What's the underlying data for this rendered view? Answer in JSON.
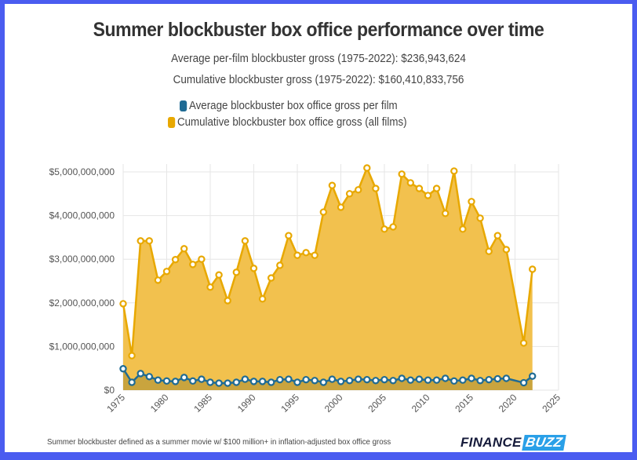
{
  "header": {
    "title": "Summer blockbuster box office performance over time",
    "subtitle_avg": "Average per-film blockbuster gross (1975-2022): $236,943,624",
    "subtitle_cum": "Cumulative blockbuster gross (1975-2022): $160,410,833,756"
  },
  "legend": {
    "items": [
      {
        "label": "Average blockbuster box office gross per film",
        "color": "#1f6b94"
      },
      {
        "label": "Cumulative blockbuster box office gross (all films)",
        "color": "#e8a800"
      }
    ]
  },
  "footer": {
    "note": "Summer blockbuster defined as a summer movie w/ $100 million+ in inflation-adjusted box office gross",
    "logo_part1": "FINANCE",
    "logo_part2": "BUZZ"
  },
  "colors": {
    "border": "#4a5cf0",
    "cumulative_line": "#e8a800",
    "cumulative_fill": "#f2c14e",
    "average_line": "#1f6b94",
    "average_fill": "#c9a43e",
    "grid": "#e6e6e6"
  },
  "chart_data": {
    "type": "area",
    "title": "Summer blockbuster box office performance over time",
    "subtitle": [
      "Average per-film blockbuster gross (1975-2022): $236,943,624",
      "Cumulative blockbuster gross (1975-2022): $160,410,833,756"
    ],
    "xlabel": "",
    "ylabel": "",
    "xlim": [
      1975,
      2025
    ],
    "ylim": [
      0,
      5000000000
    ],
    "x_ticks": [
      "1975",
      "1980",
      "1985",
      "1990",
      "1995",
      "2000",
      "2005",
      "2010",
      "2015",
      "2020",
      "2025"
    ],
    "y_ticks": [
      "$0",
      "$1,000,000,000",
      "$2,000,000,000",
      "$3,000,000,000",
      "$4,000,000,000",
      "$5,000,000,000"
    ],
    "grid": true,
    "legend_position": "top",
    "x": [
      1975,
      1976,
      1977,
      1978,
      1979,
      1980,
      1981,
      1982,
      1983,
      1984,
      1985,
      1986,
      1987,
      1988,
      1989,
      1990,
      1991,
      1992,
      1993,
      1994,
      1995,
      1996,
      1997,
      1998,
      1999,
      2000,
      2001,
      2002,
      2003,
      2004,
      2005,
      2006,
      2007,
      2008,
      2009,
      2010,
      2011,
      2012,
      2013,
      2014,
      2015,
      2016,
      2017,
      2018,
      2019,
      2021,
      2022
    ],
    "series": [
      {
        "name": "Average blockbuster box office gross per film",
        "values": [
          490000000,
          180000000,
          380000000,
          310000000,
          230000000,
          210000000,
          200000000,
          290000000,
          210000000,
          250000000,
          180000000,
          160000000,
          160000000,
          180000000,
          250000000,
          200000000,
          200000000,
          180000000,
          240000000,
          250000000,
          180000000,
          240000000,
          220000000,
          180000000,
          250000000,
          200000000,
          220000000,
          250000000,
          240000000,
          220000000,
          240000000,
          220000000,
          270000000,
          230000000,
          250000000,
          230000000,
          230000000,
          270000000,
          210000000,
          230000000,
          270000000,
          220000000,
          240000000,
          260000000,
          270000000,
          170000000,
          320000000
        ]
      },
      {
        "name": "Cumulative blockbuster box office gross (all films)",
        "values": [
          1980000000,
          790000000,
          3420000000,
          3420000000,
          2520000000,
          2720000000,
          2990000000,
          3240000000,
          2880000000,
          3000000000,
          2360000000,
          2640000000,
          2050000000,
          2700000000,
          3420000000,
          2790000000,
          2090000000,
          2570000000,
          2860000000,
          3540000000,
          3090000000,
          3150000000,
          3090000000,
          4080000000,
          4690000000,
          4190000000,
          4500000000,
          4590000000,
          5090000000,
          4620000000,
          3690000000,
          3740000000,
          4950000000,
          4750000000,
          4620000000,
          4460000000,
          4620000000,
          4050000000,
          5020000000,
          3690000000,
          4320000000,
          3940000000,
          3180000000,
          3540000000,
          3220000000,
          1080000000,
          2770000000
        ]
      }
    ]
  }
}
